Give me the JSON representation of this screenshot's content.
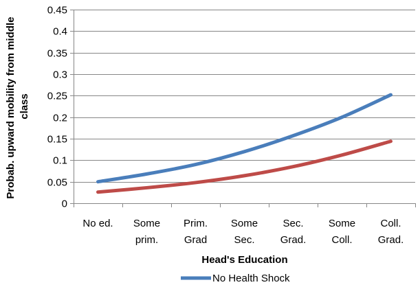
{
  "chart_data": {
    "type": "line",
    "categories": [
      [
        "No ed."
      ],
      [
        "Some",
        "prim."
      ],
      [
        "Prim.",
        "Grad"
      ],
      [
        "Some",
        "Sec."
      ],
      [
        "Sec.",
        "Grad."
      ],
      [
        "Some",
        "Coll."
      ],
      [
        "Coll.",
        "Grad."
      ]
    ],
    "series": [
      {
        "name": "No Health Shock",
        "color": "#4a7ebb",
        "values": [
          0.05,
          0.068,
          0.09,
          0.12,
          0.157,
          0.2,
          0.252
        ]
      },
      {
        "color": "#be4b48",
        "values": [
          0.026,
          0.036,
          0.048,
          0.064,
          0.085,
          0.112,
          0.144
        ]
      }
    ],
    "xlabel": "Head's Education",
    "ylabel_lines": [
      "Probab. upward mobility from middle",
      "class"
    ],
    "ylim": [
      0,
      0.45
    ],
    "yticks": [
      "0",
      "0.05",
      "0.1",
      "0.15",
      "0.2",
      "0.25",
      "0.3",
      "0.35",
      "0.4",
      "0.45"
    ],
    "grid": true,
    "legend_position": "bottom-center",
    "gridline_color": "#868686"
  }
}
